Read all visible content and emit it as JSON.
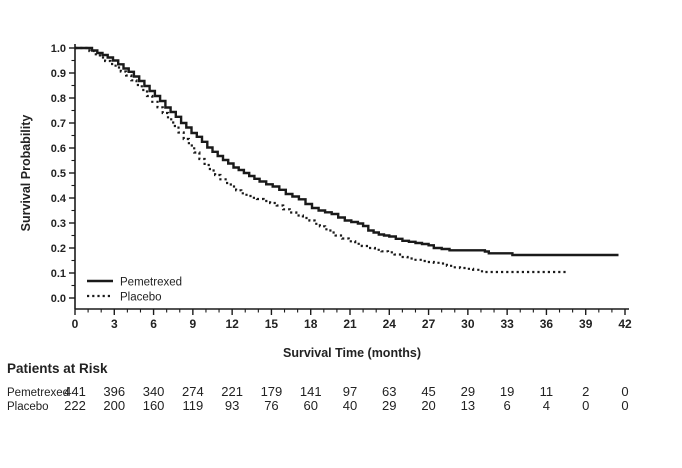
{
  "chart_data": {
    "type": "line",
    "subtype": "kaplan-meier-step",
    "title": "",
    "xlabel": "Survival Time (months)",
    "ylabel": "Survival Probability",
    "xlim": [
      0,
      42
    ],
    "ylim": [
      0.0,
      1.0
    ],
    "grid": false,
    "legend_position": "inside-lower-left",
    "axis_color": "#1a1a1a",
    "x_ticks": {
      "values": [
        0,
        3,
        6,
        9,
        12,
        15,
        18,
        21,
        24,
        27,
        30,
        33,
        36,
        39,
        42
      ],
      "labels": [
        "0",
        "3",
        "6",
        "9",
        "12",
        "15",
        "18",
        "21",
        "24",
        "27",
        "30",
        "33",
        "36",
        "39",
        "42"
      ],
      "minor_step": 1
    },
    "y_ticks": {
      "values": [
        0.0,
        0.1,
        0.2,
        0.3,
        0.4,
        0.5,
        0.6,
        0.7,
        0.8,
        0.9,
        1.0
      ],
      "labels": [
        "0.0",
        "0.1",
        "0.2",
        "0.3",
        "0.4",
        "0.5",
        "0.6",
        "0.7",
        "0.8",
        "0.9",
        "1.0"
      ],
      "minor_step": 0.05
    },
    "series": [
      {
        "name": "Pemetrexed",
        "style": "solid",
        "color": "#1a1a1a",
        "points": [
          [
            0,
            1.0
          ],
          [
            0.9,
            1.0
          ],
          [
            1.3,
            0.99
          ],
          [
            1.7,
            0.98
          ],
          [
            2.1,
            0.972
          ],
          [
            2.5,
            0.962
          ],
          [
            2.9,
            0.95
          ],
          [
            3.3,
            0.935
          ],
          [
            3.7,
            0.918
          ],
          [
            4.1,
            0.905
          ],
          [
            4.5,
            0.886
          ],
          [
            4.9,
            0.868
          ],
          [
            5.3,
            0.848
          ],
          [
            5.7,
            0.828
          ],
          [
            6.1,
            0.808
          ],
          [
            6.5,
            0.788
          ],
          [
            6.9,
            0.762
          ],
          [
            7.3,
            0.744
          ],
          [
            7.7,
            0.725
          ],
          [
            8.1,
            0.7
          ],
          [
            8.5,
            0.682
          ],
          [
            8.9,
            0.66
          ],
          [
            9.3,
            0.645
          ],
          [
            9.7,
            0.625
          ],
          [
            10.1,
            0.602
          ],
          [
            10.5,
            0.585
          ],
          [
            10.9,
            0.568
          ],
          [
            11.3,
            0.552
          ],
          [
            11.7,
            0.538
          ],
          [
            12.1,
            0.522
          ],
          [
            12.5,
            0.512
          ],
          [
            12.9,
            0.5
          ],
          [
            13.3,
            0.488
          ],
          [
            13.7,
            0.477
          ],
          [
            14.1,
            0.466
          ],
          [
            14.6,
            0.455
          ],
          [
            15.1,
            0.446
          ],
          [
            15.6,
            0.433
          ],
          [
            16.1,
            0.416
          ],
          [
            16.6,
            0.406
          ],
          [
            17.1,
            0.395
          ],
          [
            17.6,
            0.376
          ],
          [
            18.1,
            0.36
          ],
          [
            18.6,
            0.35
          ],
          [
            19.1,
            0.343
          ],
          [
            19.6,
            0.336
          ],
          [
            20.1,
            0.322
          ],
          [
            20.6,
            0.31
          ],
          [
            21.1,
            0.304
          ],
          [
            21.6,
            0.298
          ],
          [
            22.0,
            0.288
          ],
          [
            22.4,
            0.27
          ],
          [
            22.8,
            0.262
          ],
          [
            23.2,
            0.254
          ],
          [
            23.6,
            0.25
          ],
          [
            24.0,
            0.246
          ],
          [
            24.5,
            0.237
          ],
          [
            25.0,
            0.229
          ],
          [
            25.5,
            0.225
          ],
          [
            26.0,
            0.22
          ],
          [
            26.5,
            0.216
          ],
          [
            27.0,
            0.211
          ],
          [
            27.4,
            0.2
          ],
          [
            28.0,
            0.196
          ],
          [
            28.6,
            0.191
          ],
          [
            31.3,
            0.186
          ],
          [
            31.6,
            0.179
          ],
          [
            33.4,
            0.172
          ],
          [
            41.5,
            0.172
          ]
        ]
      },
      {
        "name": "Placebo",
        "style": "dotted",
        "color": "#1a1a1a",
        "points": [
          [
            0,
            1.0
          ],
          [
            0.7,
            1.0
          ],
          [
            1.1,
            0.988
          ],
          [
            1.5,
            0.975
          ],
          [
            1.9,
            0.962
          ],
          [
            2.3,
            0.948
          ],
          [
            2.7,
            0.936
          ],
          [
            3.1,
            0.922
          ],
          [
            3.5,
            0.906
          ],
          [
            3.9,
            0.89
          ],
          [
            4.3,
            0.871
          ],
          [
            4.7,
            0.852
          ],
          [
            5.1,
            0.832
          ],
          [
            5.5,
            0.808
          ],
          [
            5.9,
            0.785
          ],
          [
            6.3,
            0.763
          ],
          [
            6.7,
            0.74
          ],
          [
            7.1,
            0.715
          ],
          [
            7.5,
            0.688
          ],
          [
            7.9,
            0.662
          ],
          [
            8.3,
            0.636
          ],
          [
            8.7,
            0.61
          ],
          [
            9.1,
            0.582
          ],
          [
            9.5,
            0.556
          ],
          [
            9.9,
            0.532
          ],
          [
            10.3,
            0.51
          ],
          [
            10.7,
            0.492
          ],
          [
            11.1,
            0.475
          ],
          [
            11.5,
            0.46
          ],
          [
            11.9,
            0.446
          ],
          [
            12.3,
            0.431
          ],
          [
            12.7,
            0.419
          ],
          [
            13.1,
            0.408
          ],
          [
            13.5,
            0.401
          ],
          [
            13.9,
            0.396
          ],
          [
            14.4,
            0.388
          ],
          [
            14.9,
            0.38
          ],
          [
            15.4,
            0.37
          ],
          [
            15.9,
            0.355
          ],
          [
            16.4,
            0.342
          ],
          [
            16.9,
            0.33
          ],
          [
            17.4,
            0.32
          ],
          [
            17.9,
            0.31
          ],
          [
            18.3,
            0.297
          ],
          [
            18.7,
            0.287
          ],
          [
            19.1,
            0.275
          ],
          [
            19.5,
            0.262
          ],
          [
            19.9,
            0.25
          ],
          [
            20.4,
            0.238
          ],
          [
            20.9,
            0.227
          ],
          [
            21.4,
            0.217
          ],
          [
            21.9,
            0.208
          ],
          [
            22.4,
            0.2
          ],
          [
            22.9,
            0.193
          ],
          [
            23.4,
            0.187
          ],
          [
            23.9,
            0.183
          ],
          [
            24.4,
            0.174
          ],
          [
            24.9,
            0.164
          ],
          [
            25.4,
            0.158
          ],
          [
            25.9,
            0.153
          ],
          [
            26.4,
            0.148
          ],
          [
            26.9,
            0.144
          ],
          [
            27.4,
            0.141
          ],
          [
            27.9,
            0.138
          ],
          [
            28.4,
            0.129
          ],
          [
            28.9,
            0.123
          ],
          [
            29.4,
            0.12
          ],
          [
            29.9,
            0.117
          ],
          [
            30.4,
            0.113
          ],
          [
            30.9,
            0.107
          ],
          [
            31.3,
            0.104
          ],
          [
            37.6,
            0.104
          ]
        ]
      }
    ]
  },
  "risk_table": {
    "title": "Patients at Risk",
    "time_points": [
      0,
      3,
      6,
      9,
      12,
      15,
      18,
      21,
      24,
      27,
      30,
      33,
      36,
      39,
      42
    ],
    "rows": [
      {
        "label": "Pemetrexed",
        "counts": [
          441,
          396,
          340,
          274,
          221,
          179,
          141,
          97,
          63,
          45,
          29,
          19,
          11,
          2,
          0
        ]
      },
      {
        "label": "Placebo",
        "counts": [
          222,
          200,
          160,
          119,
          93,
          76,
          60,
          40,
          29,
          20,
          13,
          6,
          4,
          0,
          0
        ]
      }
    ]
  }
}
